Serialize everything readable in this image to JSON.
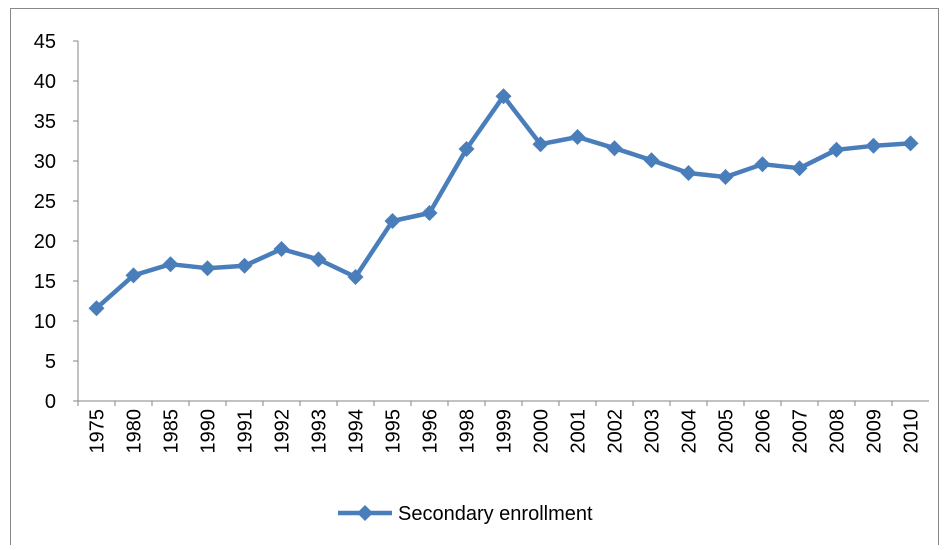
{
  "chart_data": {
    "type": "line",
    "categories": [
      "1975",
      "1980",
      "1985",
      "1990",
      "1991",
      "1992",
      "1993",
      "1994",
      "1995",
      "1996",
      "1998",
      "1999",
      "2000",
      "2001",
      "2002",
      "2003",
      "2004",
      "2005",
      "2006",
      "2007",
      "2008",
      "2009",
      "2010"
    ],
    "series": [
      {
        "name": "Secondary enrollment",
        "color": "#4a7ebb",
        "values": [
          11.6,
          15.7,
          17.1,
          16.6,
          16.9,
          19.0,
          17.7,
          15.5,
          22.5,
          23.5,
          31.5,
          38.1,
          32.1,
          33.0,
          31.6,
          30.1,
          28.5,
          28.0,
          29.6,
          29.1,
          31.4,
          31.9,
          32.2
        ]
      }
    ],
    "ylim": [
      0,
      45
    ],
    "yticks": [
      0,
      5,
      10,
      15,
      20,
      25,
      30,
      35,
      40,
      45
    ],
    "grid": false,
    "legend": "bottom"
  }
}
